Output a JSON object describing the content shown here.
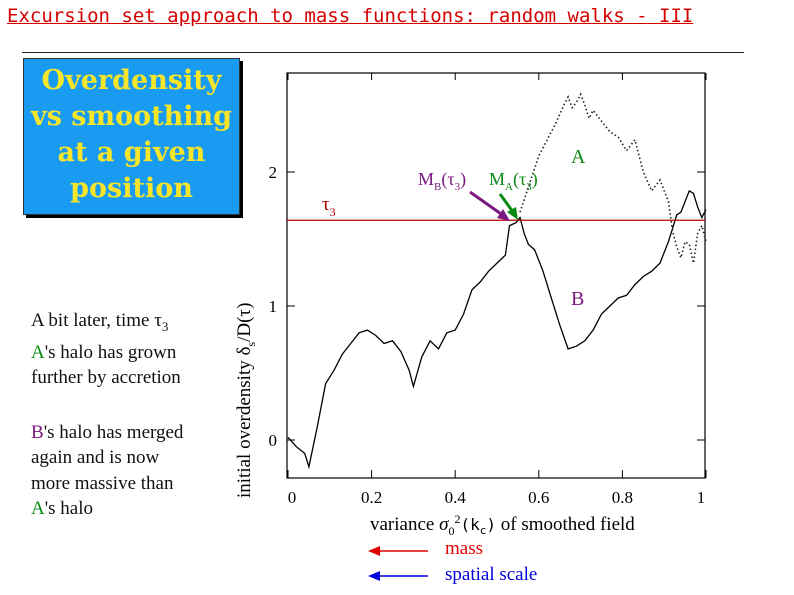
{
  "slide": {
    "title": "Excursion set approach to mass functions: random walks - III"
  },
  "box": {
    "lines": [
      "Overdensity",
      "vs  smoothing",
      "at a given",
      "position"
    ],
    "background": "#1a9bf2",
    "text_color": "#f7e52a"
  },
  "notes": {
    "line1_pre": "A bit later,  time ",
    "line1_tau": "τ",
    "line1_sub": "3",
    "a1_label": "A",
    "a1_rest": "'s halo has grown",
    "a2": "further by accretion",
    "b1_label": "B",
    "b1_rest": "'s halo has merged",
    "b2": "again and is now",
    "b3": "more massive than",
    "a3_label": "A",
    "a3_rest": "'s halo"
  },
  "legend_arrows": {
    "mass": "mass",
    "spatial_scale": "spatial scale",
    "mass_color": "#e00000",
    "spatial_color": "#0000d8"
  },
  "chart_data": {
    "type": "line",
    "xlabel_pre": "variance  ",
    "xlabel_sym": "σ",
    "xlabel_sub": "0",
    "xlabel_sup": "2",
    "xlabel_arg": "(k",
    "xlabel_argsub": "c",
    "xlabel_close": ")",
    "xlabel_post": " of smoothed field",
    "ylabel_main": "initial overdensity δ",
    "ylabel_sub": "s",
    "ylabel_post": "/D(τ)",
    "xlim": [
      0,
      1
    ],
    "ylim": [
      -0.25,
      2.7
    ],
    "xticks": [
      0,
      0.2,
      0.4,
      0.6,
      0.8,
      1
    ],
    "xtick_labels": [
      "0",
      "0.2",
      "0.4",
      "0.6",
      "0.8",
      "1"
    ],
    "yticks": [
      0,
      1,
      2
    ],
    "ytick_labels": [
      "0",
      "1",
      "2"
    ],
    "threshold": {
      "y": 1.64,
      "label": "τ",
      "label_sub": "3",
      "color": "#b30000"
    },
    "annotations": {
      "A": {
        "text": "A",
        "x": 0.82,
        "y": 2.1,
        "color": "#0b8a12"
      },
      "B": {
        "text": "B",
        "x": 0.82,
        "y": 1.02,
        "color": "#7a1a80"
      },
      "MB": {
        "text": "M",
        "sub": "B",
        "arg": "(τ",
        "argsub": "3",
        "close": ")",
        "x": 0.46,
        "y": 1.88,
        "color": "#7a1a80"
      },
      "MA": {
        "text": "M",
        "sub": "A",
        "arg": "(τ",
        "argsub": "3",
        "close": ")",
        "x": 0.58,
        "y": 1.88,
        "color": "#0b8a12"
      }
    },
    "series": [
      {
        "style": "solid",
        "color": "#000000",
        "x": [
          0.0,
          0.02,
          0.04,
          0.05,
          0.07,
          0.09,
          0.11,
          0.13,
          0.15,
          0.17,
          0.19,
          0.21,
          0.23,
          0.25,
          0.27,
          0.29,
          0.3,
          0.32,
          0.34,
          0.36,
          0.38,
          0.4,
          0.42,
          0.44,
          0.46,
          0.48,
          0.5,
          0.52,
          0.53,
          0.545,
          0.555,
          0.565,
          0.575,
          0.59,
          0.61,
          0.63,
          0.65,
          0.67,
          0.69,
          0.71,
          0.73,
          0.75,
          0.77,
          0.79,
          0.81,
          0.83,
          0.85,
          0.87,
          0.89,
          0.9,
          0.91,
          0.92,
          0.93,
          0.94,
          0.95,
          0.96,
          0.97,
          0.98,
          0.99,
          1.0
        ],
        "y": [
          0.02,
          -0.05,
          -0.1,
          -0.2,
          0.1,
          0.42,
          0.52,
          0.64,
          0.72,
          0.8,
          0.82,
          0.78,
          0.72,
          0.74,
          0.66,
          0.52,
          0.4,
          0.62,
          0.74,
          0.68,
          0.8,
          0.82,
          0.94,
          1.12,
          1.18,
          1.26,
          1.32,
          1.38,
          1.6,
          1.62,
          1.66,
          1.54,
          1.46,
          1.42,
          1.26,
          1.06,
          0.86,
          0.68,
          0.7,
          0.74,
          0.82,
          0.94,
          1.0,
          1.06,
          1.08,
          1.16,
          1.22,
          1.26,
          1.32,
          1.4,
          1.48,
          1.58,
          1.68,
          1.7,
          1.78,
          1.86,
          1.84,
          1.74,
          1.66,
          1.72
        ]
      },
      {
        "style": "dotted",
        "color": "#222222",
        "x": [
          0.555,
          0.57,
          0.585,
          0.6,
          0.62,
          0.64,
          0.66,
          0.67,
          0.68,
          0.69,
          0.7,
          0.71,
          0.72,
          0.73,
          0.75,
          0.77,
          0.79,
          0.81,
          0.83,
          0.85,
          0.87,
          0.89,
          0.91,
          0.92,
          0.93,
          0.94,
          0.95,
          0.96,
          0.97,
          0.98,
          0.99,
          1.0
        ],
        "y": [
          1.7,
          1.84,
          1.98,
          2.12,
          2.24,
          2.36,
          2.5,
          2.56,
          2.48,
          2.52,
          2.58,
          2.5,
          2.4,
          2.46,
          2.38,
          2.3,
          2.26,
          2.16,
          2.24,
          2.0,
          1.86,
          1.94,
          1.78,
          1.56,
          1.44,
          1.36,
          1.48,
          1.46,
          1.32,
          1.54,
          1.6,
          1.48
        ]
      }
    ]
  }
}
